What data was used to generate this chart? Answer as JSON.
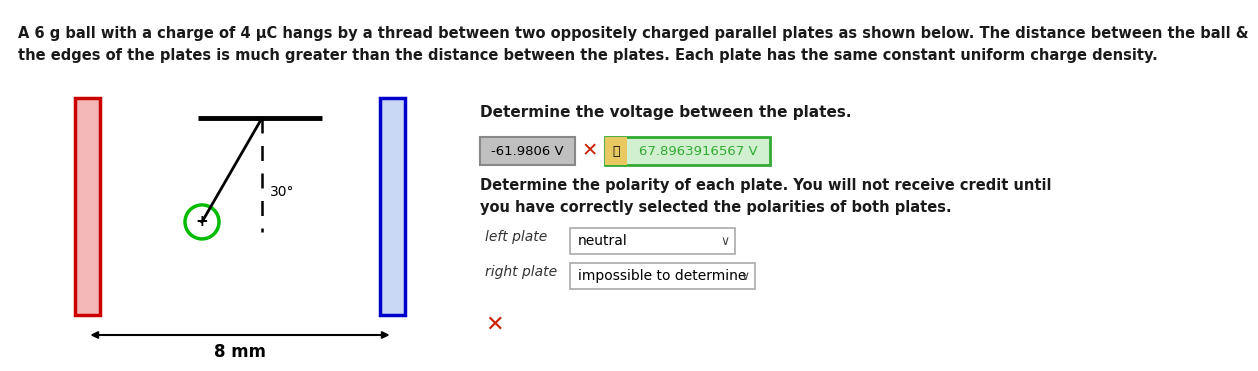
{
  "header_line1": "A 6 g ball with a charge of 4 μC hangs by a thread between two oppositely charged parallel plates as shown below. The distance between the ball &",
  "header_line2": "the edges of the plates is much greater than the distance between the plates. Each plate has the same constant uniform charge density.",
  "diagram": {
    "left_plate_color_edge": "#cc0000",
    "left_plate_color_fill": "#f5b8b8",
    "right_plate_color_edge": "#0000cc",
    "right_plate_color_fill": "#c8d8f5",
    "ball_color": "#00bb00",
    "angle_label": "30°",
    "distance_label": "8 mm"
  },
  "right_panel": {
    "title": "Determine the voltage between the plates.",
    "wrong_answer": "-61.9806 V",
    "correct_answer": "67.8963916567 V",
    "polarity_bold1": "Determine the polarity of each plate. You will not receive credit until",
    "polarity_bold2": "you have correctly selected the polarities of both plates.",
    "left_plate_label": "left plate",
    "left_plate_value": "neutral",
    "right_plate_label": "right plate",
    "right_plate_value": "impossible to determine",
    "wrong_answer_bg": "#c0c0c0",
    "correct_answer_bg": "#d0f0d0",
    "correct_answer_border": "#33aa33",
    "wrong_answer_border": "#888888"
  },
  "bg_color": "#ffffff"
}
